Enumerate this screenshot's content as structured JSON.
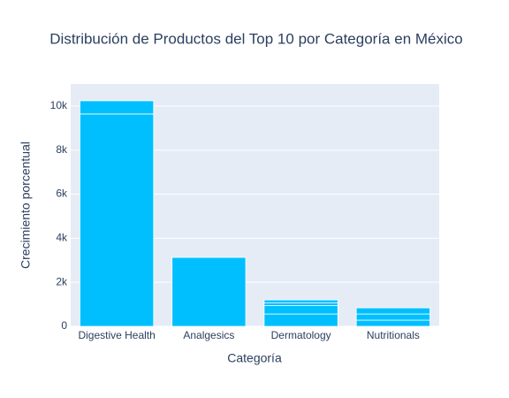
{
  "chart_data": {
    "type": "stacked_bar",
    "title": "Distribución de Productos del Top 10 por Categoría en México",
    "x_label": "Categoría",
    "y_label": "Crecimiento porcentual",
    "categories": [
      "Digestive Health",
      "Analgesics",
      "Dermatology",
      "Nutritionals"
    ],
    "series": [
      {
        "color": "#00bfff",
        "values": [
          9640,
          3130,
          560,
          280
        ]
      },
      {
        "color": "#00bfff",
        "values": [
          600,
          null,
          380,
          280
        ]
      },
      {
        "color": "#00bfff",
        "values": [
          null,
          null,
          120,
          280
        ]
      },
      {
        "color": "#00bfff",
        "values": [
          null,
          null,
          140,
          null
        ]
      }
    ],
    "ylim": [
      0,
      11000
    ],
    "yticks": [
      0,
      {
        "value": 2000,
        "label": "2k"
      },
      {
        "value": 4000,
        "label": "4k"
      },
      {
        "value": 6000,
        "label": "6k"
      },
      {
        "value": 8000,
        "label": "8k"
      },
      {
        "value": 10000,
        "label": "10k"
      }
    ],
    "grid": true
  }
}
